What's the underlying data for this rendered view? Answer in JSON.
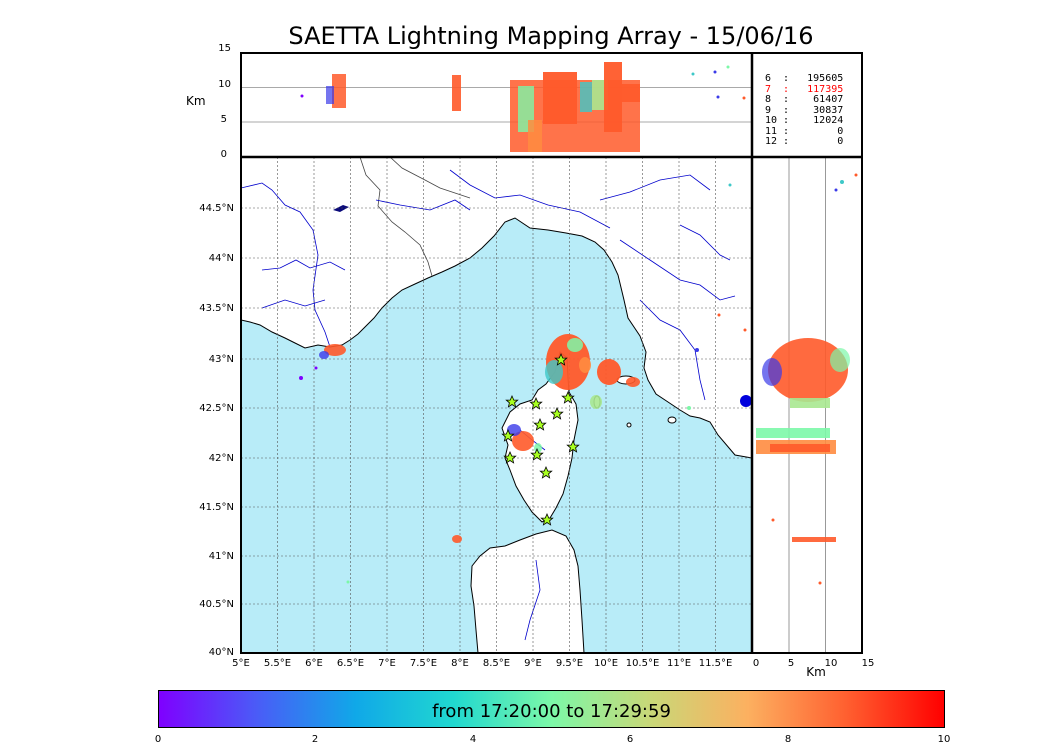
{
  "title": "SAETTA Lightning Mapping Array - 15/06/16",
  "top_panel": {
    "unit_label": "Km",
    "y_ticks": [
      "15",
      "10",
      "5",
      "0"
    ]
  },
  "right_panel": {
    "unit_label": "Km",
    "x_ticks": [
      "0",
      "5",
      "10",
      "15"
    ]
  },
  "map": {
    "lon_ticks": [
      "5°E",
      "5.5°E",
      "6°E",
      "6.5°E",
      "7°E",
      "7.5°E",
      "8°E",
      "8.5°E",
      "9°E",
      "9.5°E",
      "10°E",
      "10.5°E",
      "11°E",
      "11.5°E"
    ],
    "lat_ticks": [
      "44.5°N",
      "44°N",
      "43.5°N",
      "43°N",
      "42.5°N",
      "42°N",
      "41.5°N",
      "41°N",
      "40.5°N",
      "40°N"
    ]
  },
  "legend": {
    "rows": [
      {
        "text": "6  :   195605",
        "highlight": false
      },
      {
        "text": "7  :   117395",
        "highlight": true
      },
      {
        "text": "8  :    61407",
        "highlight": false
      },
      {
        "text": "9  :    30837",
        "highlight": false
      },
      {
        "text": "10 :    12024",
        "highlight": false
      },
      {
        "text": "11 :        0",
        "highlight": false
      },
      {
        "text": "12 :        0",
        "highlight": false
      }
    ],
    "highlight_color": "#ff0000"
  },
  "colorbar": {
    "caption": "from 17:20:00 to 17:29:59",
    "ticks": [
      "0",
      "2",
      "4",
      "6",
      "8",
      "10"
    ]
  },
  "colors": {
    "sea": "#b8ecf8",
    "land": "#ffffff",
    "rivers": "#0000cc",
    "station_marker": "#a8ff20"
  }
}
